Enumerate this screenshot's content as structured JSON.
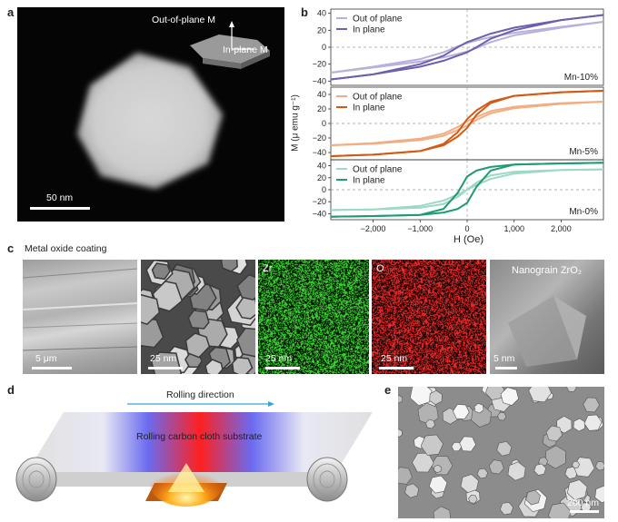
{
  "panel_labels": {
    "a": "a",
    "b": "b",
    "c": "c",
    "d": "d",
    "e": "e"
  },
  "panel_a": {
    "out_of_plane_label": "Out-of-plane M",
    "in_plane_label": "In-plane M",
    "scale_bar": "50 nm"
  },
  "panel_c": {
    "title": "Metal oxide coating",
    "images": [
      {
        "scale": "5 μm",
        "title": ""
      },
      {
        "scale": "25 nm",
        "title": ""
      },
      {
        "scale": "25 nm",
        "title": "Zr"
      },
      {
        "scale": "25 nm",
        "title": "O"
      },
      {
        "scale": "5 nm",
        "title": "Nanograin ZrO₂"
      }
    ]
  },
  "panel_d": {
    "rolling_direction": "Rolling direction",
    "substrate_label": "Rolling carbon cloth substrate"
  },
  "panel_e": {
    "scale_bar": "200 nm"
  },
  "chart_data": [
    {
      "type": "line",
      "title": "",
      "sample": "Mn-10%",
      "xlabel": "H (Oe)",
      "ylabel": "M (μ emu g⁻¹)",
      "xlim": [
        -2900,
        2900
      ],
      "ylim": [
        -45,
        45
      ],
      "yticks": [
        -40,
        -20,
        0,
        20,
        40
      ],
      "legend_position": "top-left",
      "series": [
        {
          "name": "Out of plane",
          "color": "#b7b1dc",
          "x": [
            -2900,
            -2000,
            -1000,
            -500,
            -200,
            0,
            200,
            500,
            1000,
            2000,
            2900
          ],
          "up": [
            -30,
            -24,
            -17,
            -12,
            -8,
            -5,
            -1,
            6,
            14,
            23,
            30
          ],
          "down": [
            -30,
            -23,
            -14,
            -6,
            1,
            5,
            8,
            12,
            17,
            24,
            30
          ]
        },
        {
          "name": "In plane",
          "color": "#6c61ad",
          "x": [
            -2900,
            -2000,
            -1000,
            -500,
            -200,
            0,
            200,
            500,
            1000,
            2000,
            2900
          ],
          "up": [
            -38,
            -32,
            -23,
            -16,
            -10,
            -6,
            0,
            10,
            20,
            32,
            38
          ],
          "down": [
            -38,
            -32,
            -20,
            -10,
            0,
            6,
            10,
            16,
            23,
            32,
            38
          ]
        }
      ]
    },
    {
      "type": "line",
      "title": "",
      "sample": "Mn-5%",
      "xlabel": "H (Oe)",
      "ylabel": "M (μ emu g⁻¹)",
      "xlim": [
        -2900,
        2900
      ],
      "ylim": [
        -50,
        50
      ],
      "yticks": [
        -40,
        -20,
        0,
        20,
        40
      ],
      "legend_position": "top-left",
      "series": [
        {
          "name": "Out of plane",
          "color": "#f2ad82",
          "x": [
            -2900,
            -2000,
            -1000,
            -500,
            -200,
            0,
            200,
            500,
            1000,
            2000,
            2900
          ],
          "up": [
            -30,
            -28,
            -23,
            -17,
            -9,
            -3,
            5,
            14,
            21,
            27,
            30
          ],
          "down": [
            -30,
            -27,
            -21,
            -14,
            -5,
            3,
            9,
            17,
            23,
            28,
            30
          ]
        },
        {
          "name": "In plane",
          "color": "#d35a12",
          "x": [
            -2900,
            -2000,
            -1000,
            -500,
            -200,
            0,
            200,
            500,
            1000,
            2000,
            2900
          ],
          "up": [
            -45,
            -43,
            -38,
            -30,
            -18,
            -6,
            12,
            28,
            38,
            43,
            45
          ],
          "down": [
            -45,
            -43,
            -38,
            -28,
            -12,
            6,
            18,
            30,
            38,
            43,
            45
          ]
        }
      ]
    },
    {
      "type": "line",
      "title": "",
      "sample": "Mn-0%",
      "xlabel": "H (Oe)",
      "ylabel": "M (μ emu g⁻¹)",
      "xlim": [
        -2900,
        2900
      ],
      "ylim": [
        -50,
        50
      ],
      "yticks": [
        -40,
        -20,
        0,
        20,
        40
      ],
      "xticks": [
        -2000,
        -1000,
        0,
        1000,
        2000
      ],
      "xticklabels": [
        "−2,000",
        "−1,000",
        "0",
        "1,000",
        "2,000"
      ],
      "legend_position": "top-left",
      "series": [
        {
          "name": "Out of plane",
          "color": "#9fd8c3",
          "x": [
            -2900,
            -2000,
            -1000,
            -500,
            -200,
            0,
            200,
            500,
            1000,
            2000,
            2900
          ],
          "up": [
            -34,
            -33,
            -27,
            -18,
            -8,
            0,
            12,
            24,
            30,
            33,
            34
          ],
          "down": [
            -34,
            -33,
            -30,
            -24,
            -12,
            0,
            8,
            18,
            27,
            33,
            34
          ]
        },
        {
          "name": "In plane",
          "color": "#1f9a72",
          "x": [
            -2900,
            -2000,
            -1000,
            -500,
            -200,
            0,
            200,
            500,
            1000,
            2000,
            2900
          ],
          "up": [
            -45,
            -44,
            -42,
            -38,
            -32,
            -22,
            5,
            32,
            42,
            44,
            45
          ],
          "down": [
            -45,
            -44,
            -42,
            -32,
            -5,
            22,
            32,
            38,
            42,
            44,
            45
          ]
        }
      ]
    }
  ]
}
